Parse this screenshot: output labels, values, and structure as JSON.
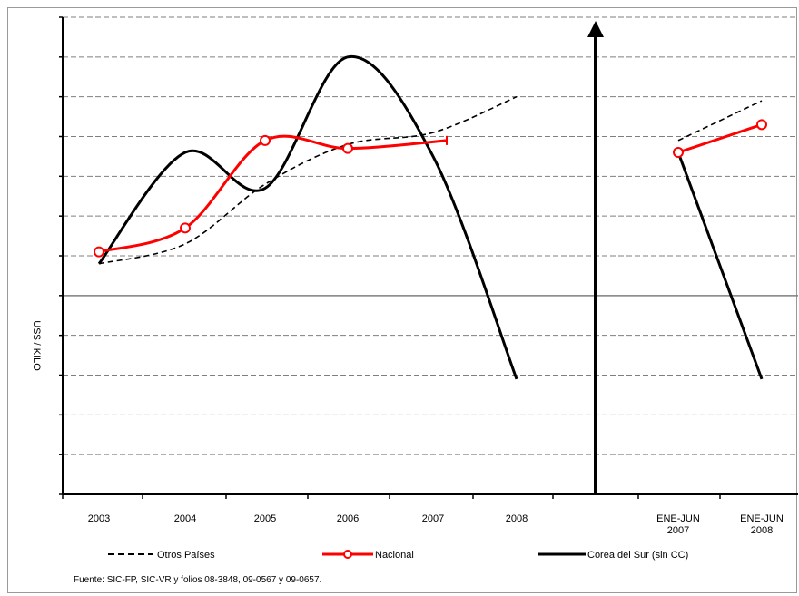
{
  "chart_data": {
    "type": "line",
    "ylabel": "US$ / KILO",
    "y_tick_labels_visible": false,
    "grid": "horizontal dashed",
    "categories": [
      "2003",
      "2004",
      "2005",
      "2006",
      "2007",
      "2008"
    ],
    "categories_right": [
      {
        "line1": "ENE-JUN",
        "line2": "2007"
      },
      {
        "line1": "ENE-JUN",
        "line2": "2008"
      }
    ],
    "ylim": [
      0,
      12
    ],
    "series": [
      {
        "name": "Otros Países",
        "style": "dashed",
        "color": "#000000",
        "values": [
          5.8,
          6.3,
          7.8,
          8.8,
          9.1,
          10.0
        ],
        "values_right": [
          8.9,
          9.9
        ]
      },
      {
        "name": "Nacional",
        "style": "solid-marker",
        "color": "#ff0000",
        "values": [
          6.1,
          6.7,
          8.9,
          8.7,
          null,
          null
        ],
        "values_right": [
          8.6,
          9.3
        ]
      },
      {
        "name": "Corea del Sur (sin CC)",
        "style": "solid",
        "color": "#000000",
        "values": [
          5.8,
          8.6,
          7.7,
          11.0,
          8.5,
          2.9
        ],
        "values_right": [
          8.6,
          2.9
        ]
      }
    ],
    "nacional_2007_partial": 8.9,
    "legend_placement": "bottom",
    "source": "Fuente: SIC-FP, SIC-VR y folios 08-3848,  09-0567 y 09-0657."
  }
}
